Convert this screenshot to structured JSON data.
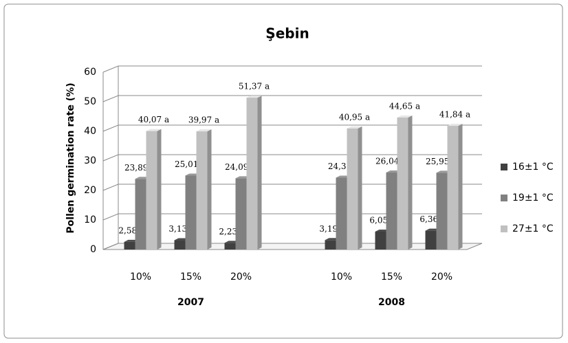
{
  "chart_data": {
    "type": "bar3d",
    "title": "Şebin",
    "y_label": "Pollen germination rate (%)",
    "categories": [
      "10%",
      "15%",
      "20%",
      null,
      "10%",
      "15%",
      "20%"
    ],
    "x_groups": [
      "2007",
      "2008"
    ],
    "ylim": [
      0,
      60
    ],
    "yticks": [
      0,
      10,
      20,
      30,
      40,
      50,
      60
    ],
    "grid": true,
    "legend": "right",
    "series": [
      {
        "name": "16±1 °C",
        "color": "#404040",
        "values": [
          2.58,
          3.13,
          2.23,
          null,
          3.19,
          6.05,
          6.36
        ],
        "value_labels": [
          "2,58 b",
          "3,13 b",
          "2,23 b",
          null,
          "3,19 b",
          "6,05 b",
          "6,36 b"
        ]
      },
      {
        "name": "19±1 °C",
        "color": "#808080",
        "values": [
          23.89,
          25.01,
          24.09,
          null,
          24.3,
          26.04,
          25.95
        ],
        "value_labels": [
          "23,89 ab",
          "25,01 ab",
          "24,09 ab",
          null,
          "24,3 ab",
          "26,04 ab",
          "25,95 ab"
        ]
      },
      {
        "name": "27±1 °C",
        "color": "#c0c0c0",
        "values": [
          40.07,
          39.97,
          51.37,
          null,
          40.95,
          44.65,
          41.84
        ],
        "value_labels": [
          "40,07 a",
          "39,97 a",
          "51,37 a",
          null,
          "40,95 a",
          "44,65 a",
          "41,84 a"
        ]
      }
    ]
  }
}
